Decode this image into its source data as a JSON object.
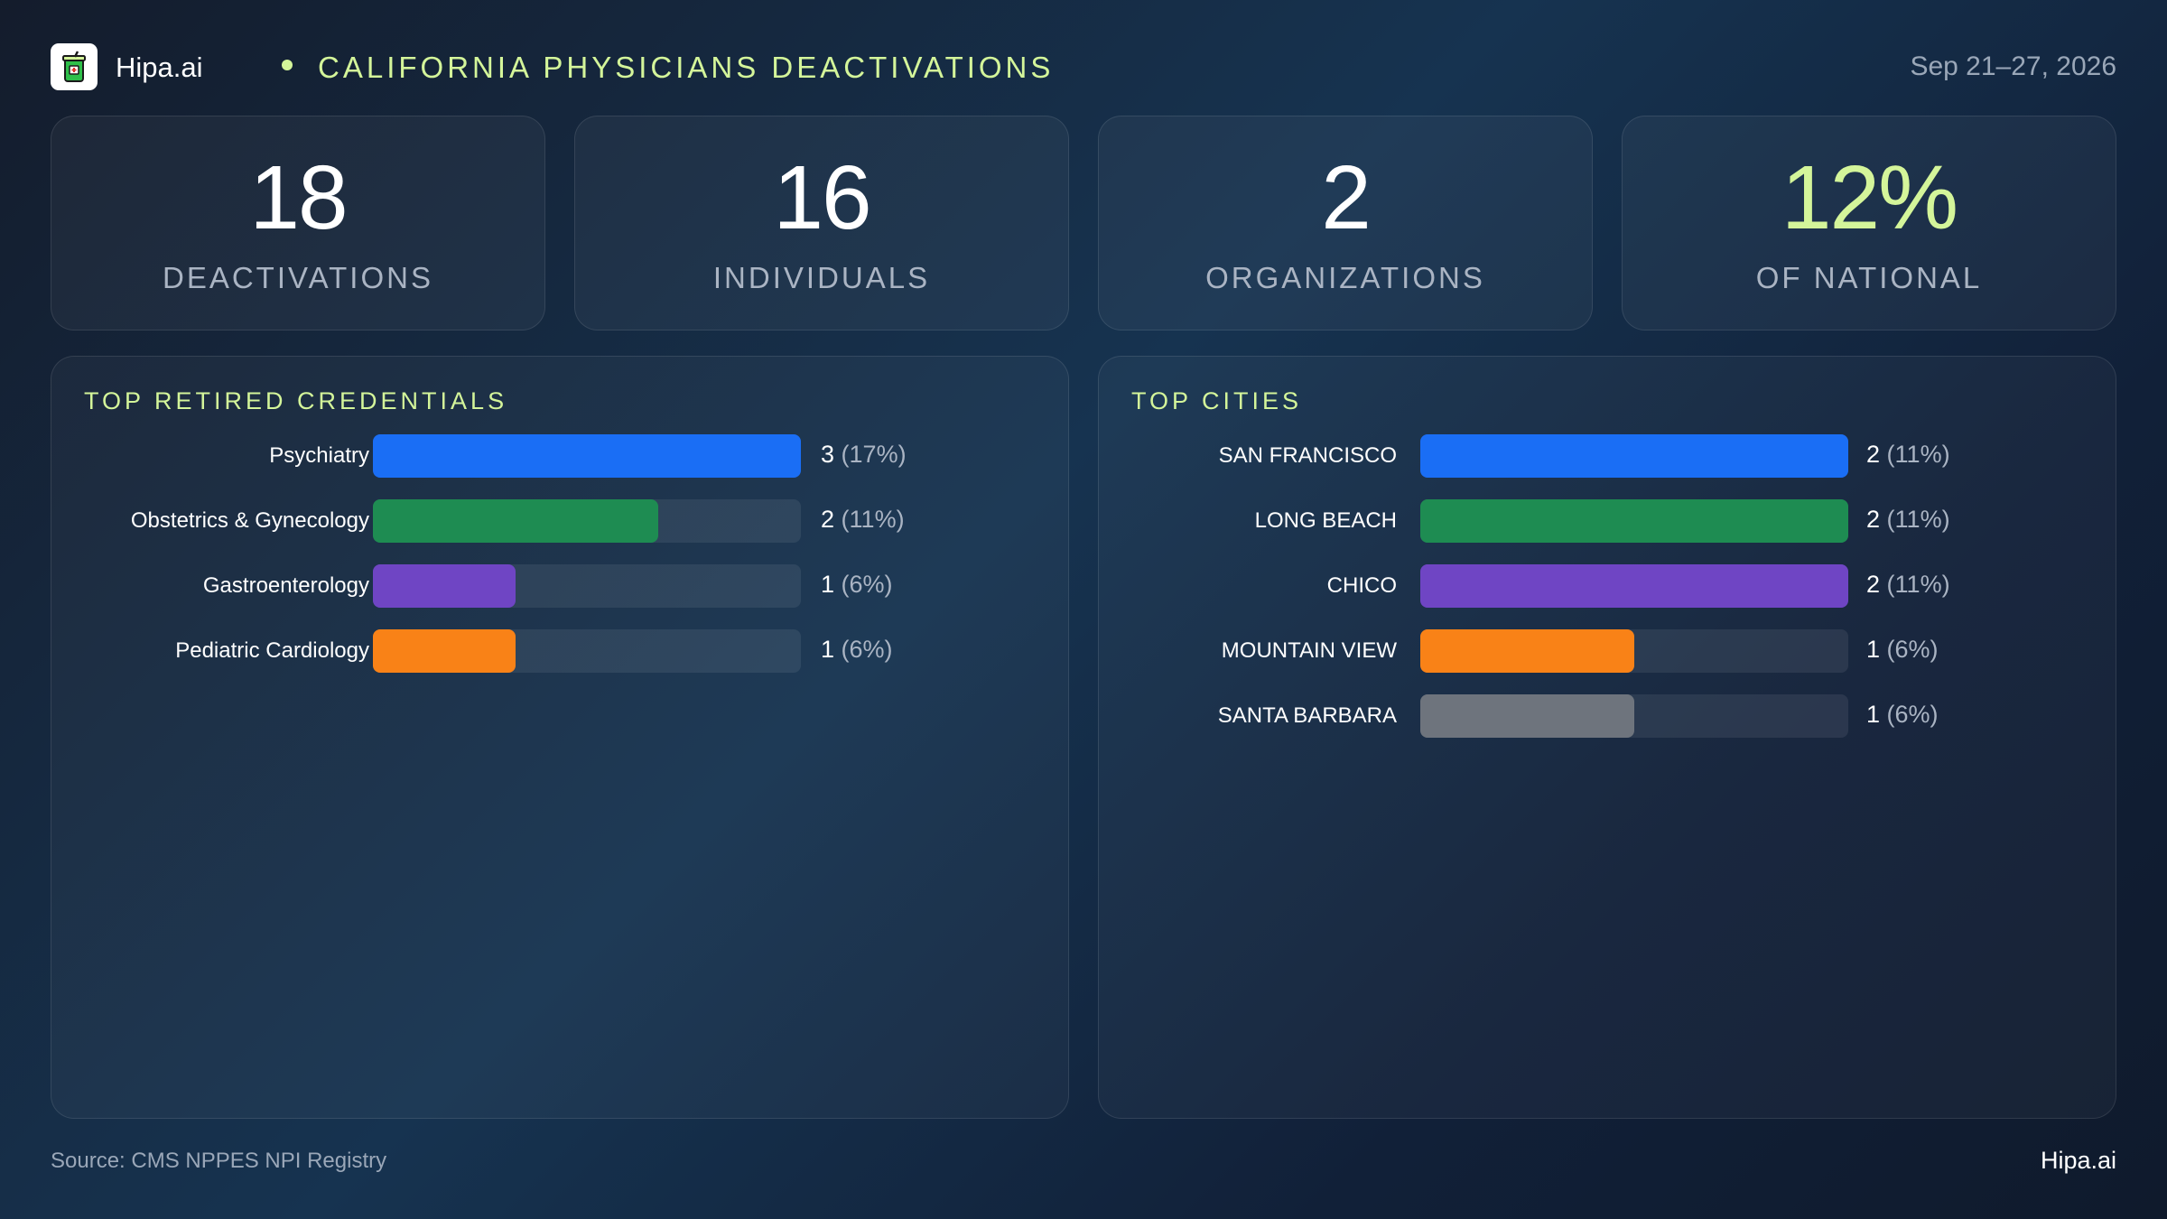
{
  "header": {
    "brand": "Hipa.ai",
    "title": "CALIFORNIA PHYSICIANS DEACTIVATIONS",
    "date": "Sep 21–27, 2026",
    "accent_color": "#d4f59a"
  },
  "stats": [
    {
      "value": "18",
      "label": "DEACTIVATIONS"
    },
    {
      "value": "16",
      "label": "INDIVIDUALS"
    },
    {
      "value": "2",
      "label": "ORGANIZATIONS"
    },
    {
      "value": "12%",
      "label": "OF NATIONAL"
    }
  ],
  "chart_data": [
    {
      "type": "bar",
      "orientation": "horizontal",
      "title": "TOP RETIRED CREDENTIALS",
      "categories": [
        "Psychiatry",
        "Obstetrics & Gynecology",
        "Gastroenterology",
        "Pediatric Cardiology"
      ],
      "values": [
        3,
        2,
        1,
        1
      ],
      "percents": [
        "(17%)",
        "(11%)",
        "(6%)",
        "(6%)"
      ],
      "colors": [
        "#1a6ef5",
        "#1e8c52",
        "#6f45c4",
        "#f98217"
      ],
      "xlim": [
        0,
        3
      ]
    },
    {
      "type": "bar",
      "orientation": "horizontal",
      "title": "TOP CITIES",
      "categories": [
        "SAN FRANCISCO",
        "LONG BEACH",
        "CHICO",
        "MOUNTAIN VIEW",
        "SANTA BARBARA"
      ],
      "values": [
        2,
        2,
        2,
        1,
        1
      ],
      "percents": [
        "(11%)",
        "(11%)",
        "(11%)",
        "(6%)",
        "(6%)"
      ],
      "colors": [
        "#1a6ef5",
        "#1e8c52",
        "#6f45c4",
        "#f98217",
        "#6e747d"
      ],
      "xlim": [
        0,
        2
      ]
    }
  ],
  "footer": {
    "source": "Source: CMS NPPES NPI Registry",
    "brand": "Hipa.ai"
  }
}
